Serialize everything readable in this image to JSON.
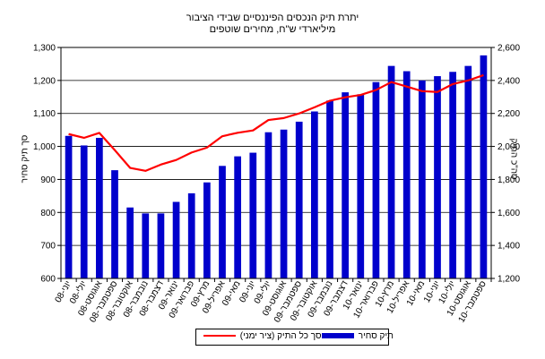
{
  "chart_data": {
    "type": "bar+line",
    "title": "יתרת תיק הנכסים הפיננסיים שבידי הציבור",
    "subtitle": "מיליארדי ש\"ח, מחירים שוטפים",
    "ylabel_left": "סך תיק סחיר",
    "ylabel_right": "סה\"כ התיק",
    "ylim_left": [
      600,
      1300
    ],
    "ylim_right": [
      1200,
      2600
    ],
    "yticks_left": [
      "600",
      "700",
      "800",
      "900",
      "1,000",
      "1,100",
      "1,200",
      "1,300"
    ],
    "yticks_right": [
      "1,200",
      "1,400",
      "1,600",
      "1,800",
      "2,000",
      "2,200",
      "2,400",
      "2,600"
    ],
    "grid": true,
    "legend_position": "bottom",
    "categories": [
      "יוני-08",
      "יולי-08",
      "אוגוסט-08",
      "ספטמבר-08",
      "אוקטובר-08",
      "נובמבר-08",
      "דצמבר-08",
      "ינואר-09",
      "פברואר-09",
      "מרץ-09",
      "אפריל-09",
      "מאי-09",
      "יוני-09",
      "יולי-09",
      "אוגוסט-09",
      "ספטמבר-09",
      "אוקטובר-09",
      "נובמבר-09",
      "דצמבר-09",
      "ינואר-10",
      "פברואר-10",
      "מרץ-10",
      "אפריל-10",
      "מאי-10",
      "יוני-10",
      "יולי-10",
      "אוגוסט-10",
      "ספטמבר-10"
    ],
    "series": [
      {
        "name": "תיק סחיר",
        "type": "bar",
        "axis": "left",
        "color": "#0000cc",
        "values": [
          1032,
          1003,
          1026,
          928,
          815,
          797,
          797,
          832,
          858,
          891,
          941,
          970,
          981,
          1043,
          1051,
          1075,
          1106,
          1139,
          1164,
          1158,
          1195,
          1244,
          1228,
          1200,
          1213,
          1226,
          1244,
          1276
        ]
      },
      {
        "name": "סך כל התיק (ציר ימני)",
        "type": "line",
        "axis": "right",
        "color": "#ff0000",
        "values": [
          2075,
          2052,
          2082,
          1978,
          1870,
          1852,
          1890,
          1918,
          1963,
          1993,
          2062,
          2083,
          2097,
          2160,
          2172,
          2200,
          2237,
          2277,
          2298,
          2312,
          2342,
          2390,
          2363,
          2335,
          2330,
          2378,
          2400,
          2432
        ]
      }
    ]
  }
}
